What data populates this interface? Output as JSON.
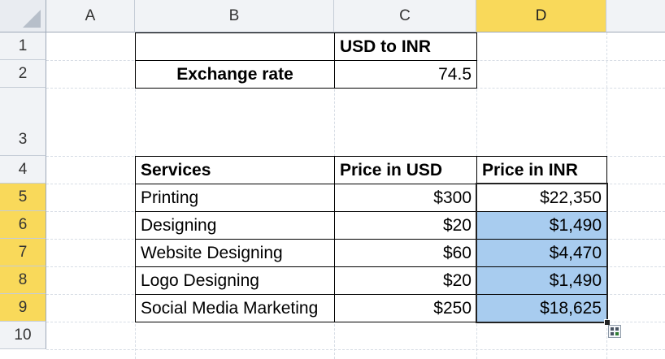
{
  "columns": [
    "A",
    "B",
    "C",
    "D"
  ],
  "rows": [
    "1",
    "2",
    "3",
    "4",
    "5",
    "6",
    "7",
    "8",
    "9",
    "10"
  ],
  "exchange": {
    "header": "USD to INR",
    "label": "Exchange rate",
    "value": "74.5"
  },
  "table": {
    "headers": [
      "Services",
      "Price in USD",
      "Price in INR"
    ],
    "rows": [
      {
        "service": "Printing",
        "usd": "$300",
        "inr": "$22,350"
      },
      {
        "service": "Designing",
        "usd": "$20",
        "inr": "$1,490"
      },
      {
        "service": "Website Designing",
        "usd": "$60",
        "inr": "$4,470"
      },
      {
        "service": "Logo Designing",
        "usd": "$20",
        "inr": "$1,490"
      },
      {
        "service": "Social Media Marketing",
        "usd": "$250",
        "inr": "$18,625"
      }
    ]
  },
  "colors": {
    "selection_fill": "#a8ccef",
    "header_highlight": "#f9d95a"
  },
  "icons": {
    "autofill": "autofill-options-icon",
    "corner": "select-all-icon"
  }
}
